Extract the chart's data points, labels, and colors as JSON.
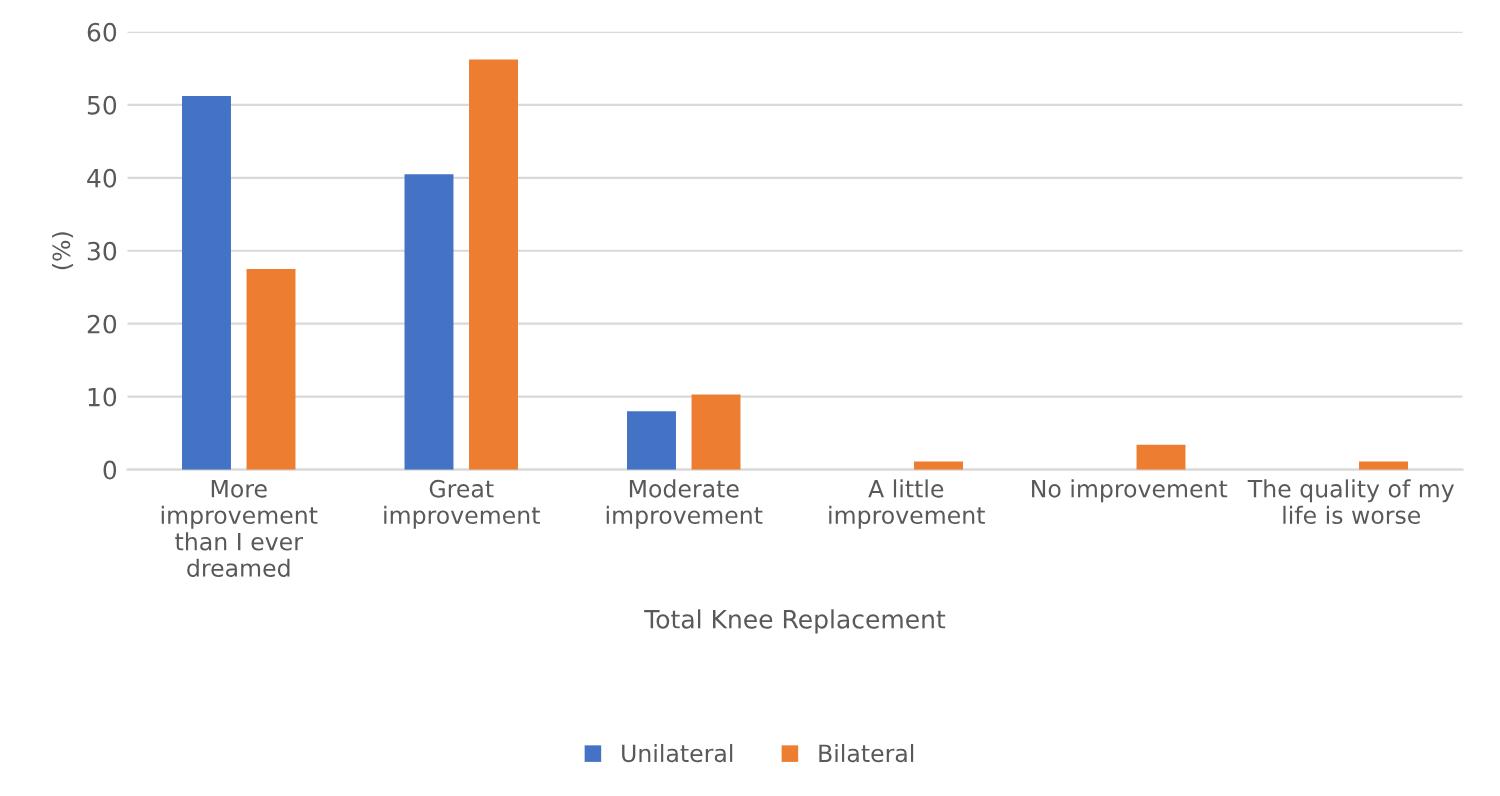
{
  "chart_data": {
    "type": "bar",
    "xlabel": "Total Knee Replacement",
    "ylabel": "(%)",
    "categories": [
      "More\nimprovement\nthan I ever\ndreamed",
      "Great\nimprovement",
      "Moderate\nimprovement",
      "A little\nimprovement",
      "No improvement",
      "The quality of my\nlife is worse"
    ],
    "series": [
      {
        "name": "Unilateral",
        "color": "#4472c4",
        "values": [
          51.2,
          40.5,
          8,
          0,
          0,
          0
        ]
      },
      {
        "name": "Bilateral",
        "color": "#ed7d31",
        "values": [
          27.5,
          56.2,
          10.3,
          1.1,
          3.4,
          1.1
        ]
      }
    ],
    "ylim": [
      0,
      60
    ],
    "yticks": [
      0,
      10,
      20,
      30,
      40,
      50,
      60
    ],
    "grid": "y",
    "legend": "bottom"
  }
}
